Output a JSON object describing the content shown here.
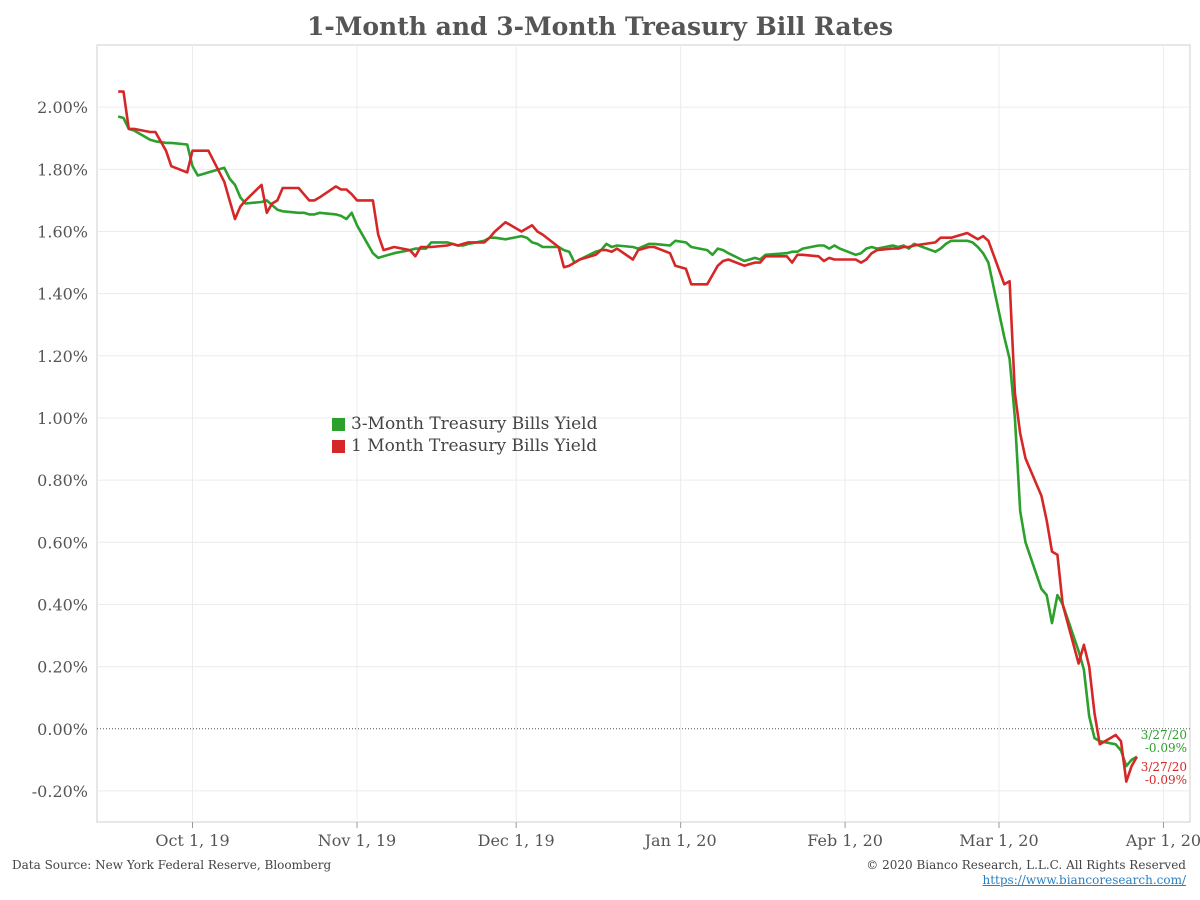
{
  "chart_data": {
    "type": "line",
    "title": "1-Month and 3-Month Treasury Bill Rates",
    "xlabel": "",
    "ylabel": "",
    "x_ticks": [
      "Oct 1, 19",
      "Nov 1, 19",
      "Dec 1, 19",
      "Jan 1, 20",
      "Feb 1, 20",
      "Mar 1, 20",
      "Apr 1, 20"
    ],
    "y_ticks": [
      "2.00%",
      "1.80%",
      "1.60%",
      "1.40%",
      "1.20%",
      "1.00%",
      "0.80%",
      "0.60%",
      "0.40%",
      "0.20%",
      "0.00%",
      "-0.20%"
    ],
    "ylim": [
      -0.3,
      2.2
    ],
    "xlim": [
      "2019-09-13",
      "2020-04-06"
    ],
    "grid": true,
    "zero_line": "dotted",
    "legend_position": "center-left",
    "series": [
      {
        "name": "3-Month Treasury Bills Yield",
        "color": "#2ca02c",
        "points": [
          [
            "2019-09-17",
            1.97
          ],
          [
            "2019-09-18",
            1.965
          ],
          [
            "2019-09-19",
            1.93
          ],
          [
            "2019-09-20",
            1.925
          ],
          [
            "2019-09-23",
            1.895
          ],
          [
            "2019-09-24",
            1.89
          ],
          [
            "2019-09-26",
            1.885
          ],
          [
            "2019-09-27",
            1.885
          ],
          [
            "2019-09-30",
            1.88
          ],
          [
            "2019-10-01",
            1.81
          ],
          [
            "2019-10-02",
            1.78
          ],
          [
            "2019-10-03",
            1.785
          ],
          [
            "2019-10-04",
            1.79
          ],
          [
            "2019-10-07",
            1.805
          ],
          [
            "2019-10-08",
            1.77
          ],
          [
            "2019-10-09",
            1.75
          ],
          [
            "2019-10-10",
            1.71
          ],
          [
            "2019-10-11",
            1.69
          ],
          [
            "2019-10-14",
            1.695
          ],
          [
            "2019-10-15",
            1.7
          ],
          [
            "2019-10-16",
            1.685
          ],
          [
            "2019-10-17",
            1.67
          ],
          [
            "2019-10-18",
            1.665
          ],
          [
            "2019-10-21",
            1.66
          ],
          [
            "2019-10-22",
            1.66
          ],
          [
            "2019-10-23",
            1.655
          ],
          [
            "2019-10-24",
            1.655
          ],
          [
            "2019-10-25",
            1.66
          ],
          [
            "2019-10-28",
            1.655
          ],
          [
            "2019-10-29",
            1.65
          ],
          [
            "2019-10-30",
            1.64
          ],
          [
            "2019-10-31",
            1.66
          ],
          [
            "2019-11-01",
            1.62
          ],
          [
            "2019-11-04",
            1.53
          ],
          [
            "2019-11-05",
            1.515
          ],
          [
            "2019-11-06",
            1.52
          ],
          [
            "2019-11-07",
            1.525
          ],
          [
            "2019-11-08",
            1.53
          ],
          [
            "2019-11-11",
            1.54
          ],
          [
            "2019-11-12",
            1.545
          ],
          [
            "2019-11-13",
            1.545
          ],
          [
            "2019-11-14",
            1.545
          ],
          [
            "2019-11-15",
            1.565
          ],
          [
            "2019-11-18",
            1.565
          ],
          [
            "2019-11-19",
            1.56
          ],
          [
            "2019-11-20",
            1.555
          ],
          [
            "2019-11-21",
            1.555
          ],
          [
            "2019-11-22",
            1.56
          ],
          [
            "2019-11-25",
            1.57
          ],
          [
            "2019-11-26",
            1.58
          ],
          [
            "2019-11-27",
            1.58
          ],
          [
            "2019-11-29",
            1.575
          ],
          [
            "2019-12-02",
            1.585
          ],
          [
            "2019-12-03",
            1.58
          ],
          [
            "2019-12-04",
            1.565
          ],
          [
            "2019-12-05",
            1.56
          ],
          [
            "2019-12-06",
            1.55
          ],
          [
            "2019-12-09",
            1.55
          ],
          [
            "2019-12-10",
            1.54
          ],
          [
            "2019-12-11",
            1.535
          ],
          [
            "2019-12-12",
            1.5
          ],
          [
            "2019-12-13",
            1.51
          ],
          [
            "2019-12-16",
            1.535
          ],
          [
            "2019-12-17",
            1.54
          ],
          [
            "2019-12-18",
            1.56
          ],
          [
            "2019-12-19",
            1.55
          ],
          [
            "2019-12-20",
            1.555
          ],
          [
            "2019-12-23",
            1.55
          ],
          [
            "2019-12-24",
            1.545
          ],
          [
            "2019-12-26",
            1.56
          ],
          [
            "2019-12-27",
            1.56
          ],
          [
            "2019-12-30",
            1.555
          ],
          [
            "2019-12-31",
            1.57
          ],
          [
            "2020-01-02",
            1.565
          ],
          [
            "2020-01-03",
            1.55
          ],
          [
            "2020-01-06",
            1.54
          ],
          [
            "2020-01-07",
            1.525
          ],
          [
            "2020-01-08",
            1.545
          ],
          [
            "2020-01-09",
            1.54
          ],
          [
            "2020-01-10",
            1.53
          ],
          [
            "2020-01-13",
            1.505
          ],
          [
            "2020-01-14",
            1.51
          ],
          [
            "2020-01-15",
            1.515
          ],
          [
            "2020-01-16",
            1.51
          ],
          [
            "2020-01-17",
            1.525
          ],
          [
            "2020-01-21",
            1.53
          ],
          [
            "2020-01-22",
            1.535
          ],
          [
            "2020-01-23",
            1.535
          ],
          [
            "2020-01-24",
            1.545
          ],
          [
            "2020-01-27",
            1.555
          ],
          [
            "2020-01-28",
            1.555
          ],
          [
            "2020-01-29",
            1.545
          ],
          [
            "2020-01-30",
            1.555
          ],
          [
            "2020-01-31",
            1.545
          ],
          [
            "2020-02-03",
            1.525
          ],
          [
            "2020-02-04",
            1.53
          ],
          [
            "2020-02-05",
            1.545
          ],
          [
            "2020-02-06",
            1.55
          ],
          [
            "2020-02-07",
            1.545
          ],
          [
            "2020-02-10",
            1.555
          ],
          [
            "2020-02-11",
            1.55
          ],
          [
            "2020-02-12",
            1.555
          ],
          [
            "2020-02-13",
            1.545
          ],
          [
            "2020-02-14",
            1.56
          ],
          [
            "2020-02-18",
            1.535
          ],
          [
            "2020-02-19",
            1.545
          ],
          [
            "2020-02-20",
            1.56
          ],
          [
            "2020-02-21",
            1.57
          ],
          [
            "2020-02-24",
            1.57
          ],
          [
            "2020-02-25",
            1.565
          ],
          [
            "2020-02-26",
            1.55
          ],
          [
            "2020-02-27",
            1.53
          ],
          [
            "2020-02-28",
            1.5
          ],
          [
            "2020-03-02",
            1.26
          ],
          [
            "2020-03-03",
            1.19
          ],
          [
            "2020-03-04",
            1.0
          ],
          [
            "2020-03-05",
            0.7
          ],
          [
            "2020-03-06",
            0.6
          ],
          [
            "2020-03-09",
            0.45
          ],
          [
            "2020-03-10",
            0.43
          ],
          [
            "2020-03-11",
            0.34
          ],
          [
            "2020-03-12",
            0.43
          ],
          [
            "2020-03-13",
            0.4
          ],
          [
            "2020-03-16",
            0.25
          ],
          [
            "2020-03-17",
            0.19
          ],
          [
            "2020-03-18",
            0.04
          ],
          [
            "2020-03-19",
            -0.03
          ],
          [
            "2020-03-20",
            -0.04
          ],
          [
            "2020-03-23",
            -0.05
          ],
          [
            "2020-03-24",
            -0.07
          ],
          [
            "2020-03-25",
            -0.12
          ],
          [
            "2020-03-26",
            -0.1
          ],
          [
            "2020-03-27",
            -0.09
          ]
        ]
      },
      {
        "name": "1 Month Treasury Bills Yield",
        "color": "#d62728",
        "points": [
          [
            "2019-09-17",
            2.05
          ],
          [
            "2019-09-18",
            2.05
          ],
          [
            "2019-09-19",
            1.93
          ],
          [
            "2019-09-20",
            1.93
          ],
          [
            "2019-09-23",
            1.92
          ],
          [
            "2019-09-24",
            1.92
          ],
          [
            "2019-09-26",
            1.86
          ],
          [
            "2019-09-27",
            1.81
          ],
          [
            "2019-09-30",
            1.79
          ],
          [
            "2019-10-01",
            1.86
          ],
          [
            "2019-10-02",
            1.86
          ],
          [
            "2019-10-03",
            1.86
          ],
          [
            "2019-10-04",
            1.86
          ],
          [
            "2019-10-07",
            1.76
          ],
          [
            "2019-10-08",
            1.7
          ],
          [
            "2019-10-09",
            1.64
          ],
          [
            "2019-10-10",
            1.68
          ],
          [
            "2019-10-11",
            1.7
          ],
          [
            "2019-10-14",
            1.75
          ],
          [
            "2019-10-15",
            1.66
          ],
          [
            "2019-10-16",
            1.69
          ],
          [
            "2019-10-17",
            1.7
          ],
          [
            "2019-10-18",
            1.74
          ],
          [
            "2019-10-21",
            1.74
          ],
          [
            "2019-10-22",
            1.72
          ],
          [
            "2019-10-23",
            1.7
          ],
          [
            "2019-10-24",
            1.7
          ],
          [
            "2019-10-25",
            1.71
          ],
          [
            "2019-10-28",
            1.745
          ],
          [
            "2019-10-29",
            1.735
          ],
          [
            "2019-10-30",
            1.735
          ],
          [
            "2019-10-31",
            1.72
          ],
          [
            "2019-11-01",
            1.7
          ],
          [
            "2019-11-04",
            1.7
          ],
          [
            "2019-11-05",
            1.59
          ],
          [
            "2019-11-06",
            1.54
          ],
          [
            "2019-11-07",
            1.545
          ],
          [
            "2019-11-08",
            1.55
          ],
          [
            "2019-11-11",
            1.54
          ],
          [
            "2019-11-12",
            1.52
          ],
          [
            "2019-11-13",
            1.55
          ],
          [
            "2019-11-14",
            1.55
          ],
          [
            "2019-11-15",
            1.55
          ],
          [
            "2019-11-18",
            1.555
          ],
          [
            "2019-11-19",
            1.56
          ],
          [
            "2019-11-20",
            1.555
          ],
          [
            "2019-11-21",
            1.56
          ],
          [
            "2019-11-22",
            1.565
          ],
          [
            "2019-11-25",
            1.565
          ],
          [
            "2019-11-26",
            1.58
          ],
          [
            "2019-11-27",
            1.6
          ],
          [
            "2019-11-29",
            1.63
          ],
          [
            "2019-12-02",
            1.6
          ],
          [
            "2019-12-03",
            1.61
          ],
          [
            "2019-12-04",
            1.62
          ],
          [
            "2019-12-05",
            1.6
          ],
          [
            "2019-12-06",
            1.59
          ],
          [
            "2019-12-09",
            1.55
          ],
          [
            "2019-12-10",
            1.485
          ],
          [
            "2019-12-11",
            1.49
          ],
          [
            "2019-12-12",
            1.5
          ],
          [
            "2019-12-13",
            1.51
          ],
          [
            "2019-12-16",
            1.525
          ],
          [
            "2019-12-17",
            1.54
          ],
          [
            "2019-12-18",
            1.54
          ],
          [
            "2019-12-19",
            1.535
          ],
          [
            "2019-12-20",
            1.545
          ],
          [
            "2019-12-23",
            1.51
          ],
          [
            "2019-12-24",
            1.54
          ],
          [
            "2019-12-26",
            1.55
          ],
          [
            "2019-12-27",
            1.55
          ],
          [
            "2019-12-30",
            1.53
          ],
          [
            "2019-12-31",
            1.49
          ],
          [
            "2020-01-02",
            1.48
          ],
          [
            "2020-01-03",
            1.43
          ],
          [
            "2020-01-06",
            1.43
          ],
          [
            "2020-01-07",
            1.46
          ],
          [
            "2020-01-08",
            1.49
          ],
          [
            "2020-01-09",
            1.505
          ],
          [
            "2020-01-10",
            1.51
          ],
          [
            "2020-01-13",
            1.49
          ],
          [
            "2020-01-14",
            1.495
          ],
          [
            "2020-01-15",
            1.5
          ],
          [
            "2020-01-16",
            1.5
          ],
          [
            "2020-01-17",
            1.52
          ],
          [
            "2020-01-21",
            1.52
          ],
          [
            "2020-01-22",
            1.5
          ],
          [
            "2020-01-23",
            1.525
          ],
          [
            "2020-01-24",
            1.525
          ],
          [
            "2020-01-27",
            1.52
          ],
          [
            "2020-01-28",
            1.505
          ],
          [
            "2020-01-29",
            1.515
          ],
          [
            "2020-01-30",
            1.51
          ],
          [
            "2020-01-31",
            1.51
          ],
          [
            "2020-02-03",
            1.51
          ],
          [
            "2020-02-04",
            1.5
          ],
          [
            "2020-02-05",
            1.51
          ],
          [
            "2020-02-06",
            1.53
          ],
          [
            "2020-02-07",
            1.54
          ],
          [
            "2020-02-10",
            1.545
          ],
          [
            "2020-02-11",
            1.545
          ],
          [
            "2020-02-12",
            1.55
          ],
          [
            "2020-02-13",
            1.55
          ],
          [
            "2020-02-14",
            1.555
          ],
          [
            "2020-02-18",
            1.565
          ],
          [
            "2020-02-19",
            1.58
          ],
          [
            "2020-02-20",
            1.58
          ],
          [
            "2020-02-21",
            1.58
          ],
          [
            "2020-02-24",
            1.595
          ],
          [
            "2020-02-25",
            1.585
          ],
          [
            "2020-02-26",
            1.575
          ],
          [
            "2020-02-27",
            1.585
          ],
          [
            "2020-02-28",
            1.57
          ],
          [
            "2020-03-02",
            1.43
          ],
          [
            "2020-03-03",
            1.44
          ],
          [
            "2020-03-04",
            1.08
          ],
          [
            "2020-03-05",
            0.95
          ],
          [
            "2020-03-06",
            0.87
          ],
          [
            "2020-03-09",
            0.75
          ],
          [
            "2020-03-10",
            0.67
          ],
          [
            "2020-03-11",
            0.57
          ],
          [
            "2020-03-12",
            0.56
          ],
          [
            "2020-03-13",
            0.4
          ],
          [
            "2020-03-16",
            0.21
          ],
          [
            "2020-03-17",
            0.27
          ],
          [
            "2020-03-18",
            0.2
          ],
          [
            "2020-03-19",
            0.05
          ],
          [
            "2020-03-20",
            -0.05
          ],
          [
            "2020-03-23",
            -0.02
          ],
          [
            "2020-03-24",
            -0.04
          ],
          [
            "2020-03-25",
            -0.17
          ],
          [
            "2020-03-26",
            -0.12
          ],
          [
            "2020-03-27",
            -0.09
          ]
        ]
      }
    ],
    "end_labels": [
      {
        "series": 0,
        "date": "3/27/20",
        "value": "-0.09%",
        "color": "#2ca02c"
      },
      {
        "series": 1,
        "date": "3/27/20",
        "value": "-0.09%",
        "color": "#d62728"
      }
    ]
  },
  "footer": {
    "source": "Data Source: New York Federal Reserve, Bloomberg",
    "copyright": "© 2020 Bianco Research, L.L.C. All Rights Reserved",
    "url": "https://www.biancoresearch.com/"
  }
}
